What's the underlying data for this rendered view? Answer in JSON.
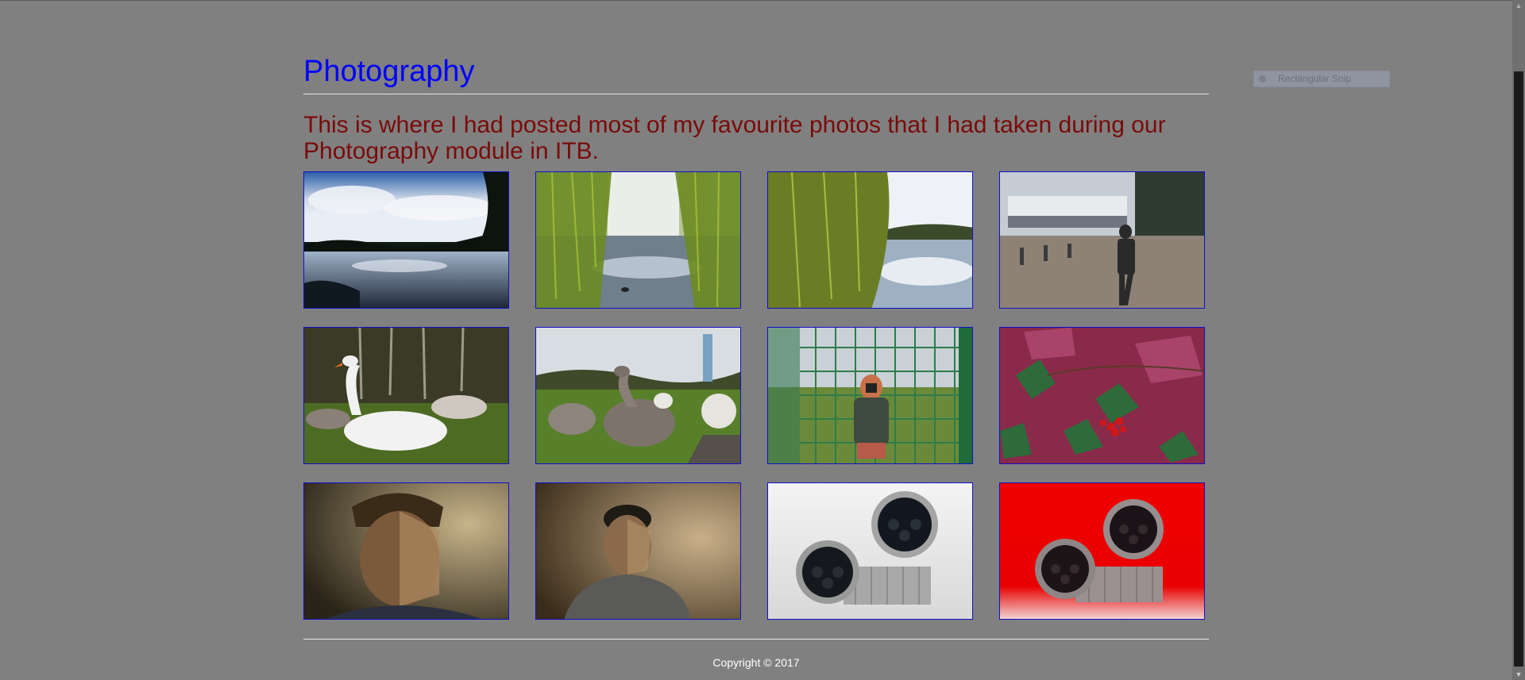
{
  "page": {
    "title": "Photography",
    "intro": "This is where I had posted most of my favourite photos that I had taken during our Photography module in ITB.",
    "copyright": "Copyright © 2017"
  },
  "snip_overlay": {
    "label": "Rectangular Snip"
  },
  "gallery": [
    {
      "name": "photo-lake-clouds"
    },
    {
      "name": "photo-willow-lake"
    },
    {
      "name": "photo-willow-lake-2"
    },
    {
      "name": "photo-blurred-walker"
    },
    {
      "name": "photo-white-swan"
    },
    {
      "name": "photo-young-swans"
    },
    {
      "name": "photo-fence-selfie"
    },
    {
      "name": "photo-red-leaves-berries"
    },
    {
      "name": "photo-portrait-man-1"
    },
    {
      "name": "photo-portrait-man-2"
    },
    {
      "name": "photo-watches-white"
    },
    {
      "name": "photo-watches-red"
    }
  ],
  "colors": {
    "background": "#808080",
    "title": "#0000ff",
    "intro_text": "#7a0a0a",
    "photo_border": "#1010c8"
  }
}
